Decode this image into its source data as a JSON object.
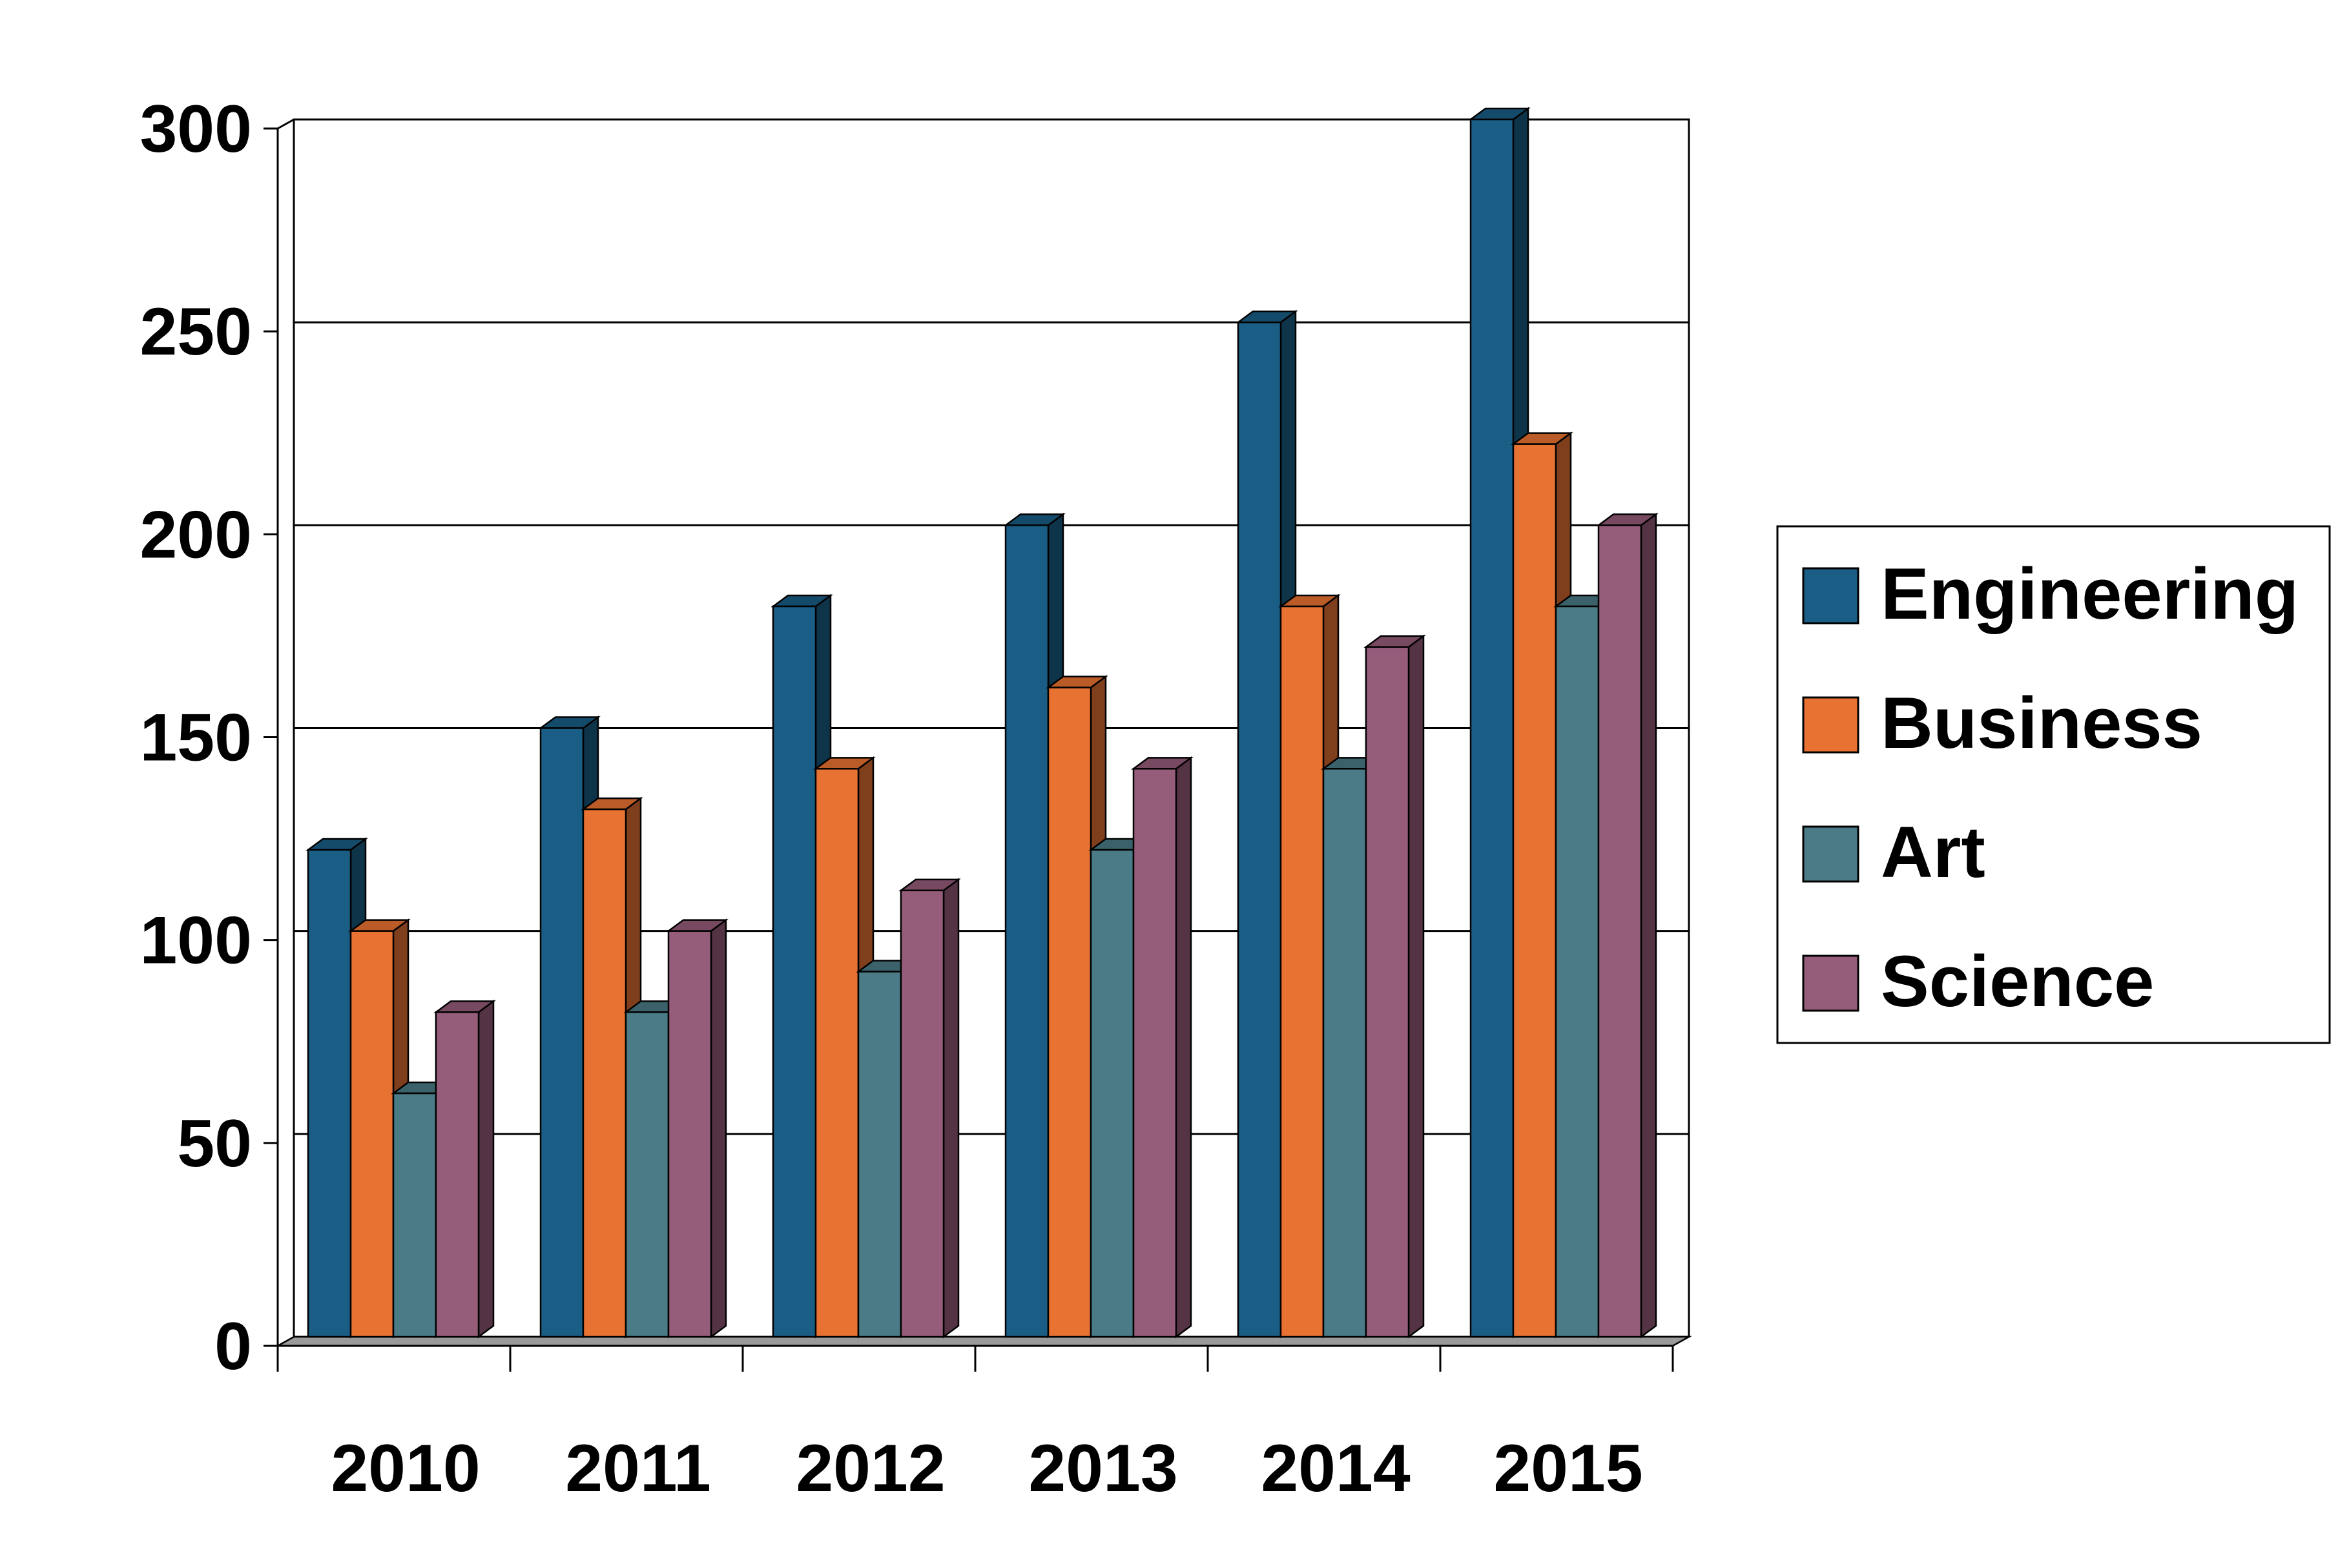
{
  "chart_data": {
    "type": "bar",
    "style": "3d-clustered-column",
    "categories": [
      "2010",
      "2011",
      "2012",
      "2013",
      "2014",
      "2015"
    ],
    "series": [
      {
        "name": "Engineering",
        "values": [
          120,
          150,
          180,
          200,
          250,
          300
        ],
        "color": "#1a5e85"
      },
      {
        "name": "Business",
        "values": [
          100,
          130,
          140,
          160,
          180,
          220
        ],
        "color": "#e87232"
      },
      {
        "name": "Art",
        "values": [
          60,
          80,
          90,
          120,
          140,
          180
        ],
        "color": "#4a7b86"
      },
      {
        "name": "Science",
        "values": [
          80,
          100,
          110,
          140,
          170,
          200
        ],
        "color": "#965d7b"
      }
    ],
    "yticks": [
      "0",
      "50",
      "100",
      "150",
      "200",
      "250",
      "300"
    ],
    "ylim": [
      0,
      300
    ],
    "grid": true,
    "legend_position": "right"
  }
}
